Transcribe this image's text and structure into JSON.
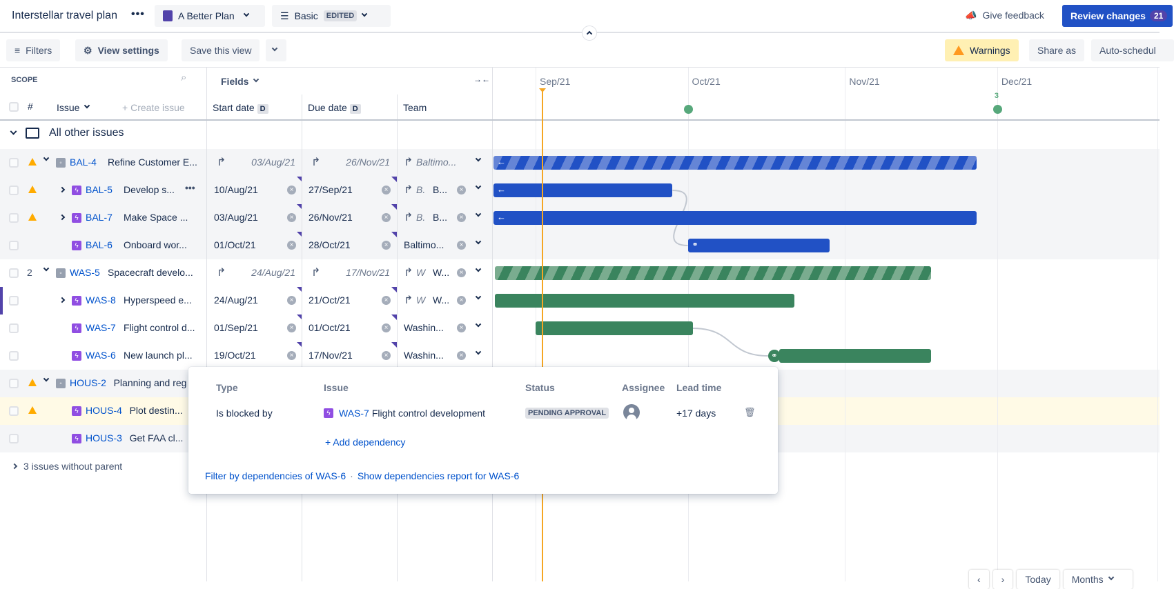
{
  "header": {
    "title": "Interstellar travel plan",
    "more_icon": "ellipsis-icon",
    "plan_selector": {
      "label": "A Better Plan",
      "color": "#5243aa"
    },
    "view_selector": {
      "label": "Basic",
      "badge": "EDITED"
    },
    "feedback": "Give feedback",
    "review": {
      "label": "Review changes",
      "count": "21"
    }
  },
  "toolbar": {
    "filters": "Filters",
    "view_settings": "View settings",
    "save_view": "Save this view",
    "warnings": "Warnings",
    "share": "Share as",
    "auto_schedule": "Auto-schedul"
  },
  "grid": {
    "scope_label": "SCOPE",
    "fields_label": "Fields",
    "rank_header": "#",
    "issue_header": "Issue",
    "create_issue": "Create issue",
    "columns": {
      "start": "Start date",
      "due": "Due date",
      "team": "Team",
      "date_badge": "D"
    },
    "group_label": "All other issues",
    "without_parent": "3 issues without parent"
  },
  "timeline": {
    "months": [
      "Sep/21",
      "Oct/21",
      "Nov/21",
      "Dec/21"
    ],
    "release_count": "3",
    "colors": {
      "blue": "#2151c5",
      "green": "#3a845e",
      "today": "#f5a623"
    }
  },
  "rows": [
    {
      "key": "BAL-4",
      "summary": "Refine Customer E...",
      "warning": true,
      "expand": "down",
      "level": 0,
      "type": "epic",
      "rank": "",
      "start": "03/Aug/21",
      "due": "26/Nov/21",
      "inherited": true,
      "team_inh": "Baltimo...",
      "team": "",
      "bg": "grey",
      "bar": "blue",
      "striped": true,
      "bar_icon": "arrow-left"
    },
    {
      "key": "BAL-5",
      "summary": "Develop s...",
      "warning": true,
      "expand": "right",
      "level": 1,
      "type": "story",
      "rank": "",
      "start": "10/Aug/21",
      "due": "27/Sep/21",
      "inherited": false,
      "team_inh": "B.",
      "team": "B...",
      "bg": "grey",
      "bar": "blue",
      "striped": false,
      "bar_icon": "arrow-left",
      "more": true
    },
    {
      "key": "BAL-7",
      "summary": "Make Space ...",
      "warning": true,
      "expand": "right",
      "level": 1,
      "type": "story",
      "rank": "",
      "start": "03/Aug/21",
      "due": "26/Nov/21",
      "inherited": false,
      "team_inh": "B.",
      "team": "B...",
      "bg": "grey",
      "bar": "blue",
      "striped": false,
      "bar_icon": "arrow-left"
    },
    {
      "key": "BAL-6",
      "summary": "Onboard wor...",
      "warning": false,
      "expand": "",
      "level": 1,
      "type": "story",
      "rank": "",
      "start": "01/Oct/21",
      "due": "28/Oct/21",
      "inherited": false,
      "team_inh": "",
      "team": "Baltimo...",
      "bg": "grey",
      "bar": "blue",
      "striped": false,
      "bar_icon": "link"
    },
    {
      "key": "WAS-5",
      "summary": "Spacecraft develo...",
      "warning": false,
      "expand": "down",
      "level": 0,
      "type": "epic",
      "rank": "2",
      "start": "24/Aug/21",
      "due": "17/Nov/21",
      "inherited": true,
      "team_inh": "W",
      "team": "W...",
      "bg": "white",
      "bar": "green",
      "striped": true,
      "bar_icon": ""
    },
    {
      "key": "WAS-8",
      "summary": "Hyperspeed e...",
      "warning": false,
      "expand": "right",
      "level": 1,
      "type": "story",
      "rank": "",
      "start": "24/Aug/21",
      "due": "21/Oct/21",
      "inherited": false,
      "team_inh": "W",
      "team": "W...",
      "bg": "white",
      "bar": "green",
      "striped": false,
      "bar_icon": "",
      "selected": true
    },
    {
      "key": "WAS-7",
      "summary": "Flight control d...",
      "warning": false,
      "expand": "",
      "level": 1,
      "type": "story",
      "rank": "",
      "start": "01/Sep/21",
      "due": "01/Oct/21",
      "inherited": false,
      "team_inh": "",
      "team": "Washin...",
      "bg": "white",
      "bar": "green",
      "striped": false,
      "bar_icon": ""
    },
    {
      "key": "WAS-6",
      "summary": "New launch pl...",
      "warning": false,
      "expand": "",
      "level": 1,
      "type": "story",
      "rank": "",
      "start": "19/Oct/21",
      "due": "17/Nov/21",
      "inherited": false,
      "team_inh": "",
      "team": "Washin...",
      "bg": "white",
      "bar": "green",
      "striped": false,
      "bar_icon": "link-circle"
    },
    {
      "key": "HOUS-2",
      "summary": "Planning and reg",
      "warning": true,
      "expand": "down",
      "level": 0,
      "type": "epic",
      "rank": "",
      "bg": "grey"
    },
    {
      "key": "HOUS-4",
      "summary": "Plot destin...",
      "warning": true,
      "expand": "",
      "level": 1,
      "type": "story",
      "rank": "",
      "bg": "yellow"
    },
    {
      "key": "HOUS-3",
      "summary": "Get FAA cl...",
      "warning": false,
      "expand": "",
      "level": 1,
      "type": "story",
      "rank": "",
      "bg": "grey"
    }
  ],
  "dependencies": [
    [
      "BAL-5",
      "BAL-6"
    ],
    [
      "WAS-7",
      "WAS-6"
    ]
  ],
  "popup": {
    "headers": {
      "type": "Type",
      "issue": "Issue",
      "status": "Status",
      "assignee": "Assignee",
      "lead": "Lead time"
    },
    "row": {
      "type": "Is blocked by",
      "key": "WAS-7",
      "summary": "Flight control development",
      "status": "PENDING APPROVAL",
      "lead": "+17 days"
    },
    "add": "+ Add dependency",
    "filter_link": "Filter by dependencies of WAS-6",
    "separator": "·",
    "report_link": "Show dependencies report for WAS-6"
  },
  "footer": {
    "prev": "‹",
    "next": "›",
    "today": "Today",
    "scale": "Months"
  }
}
